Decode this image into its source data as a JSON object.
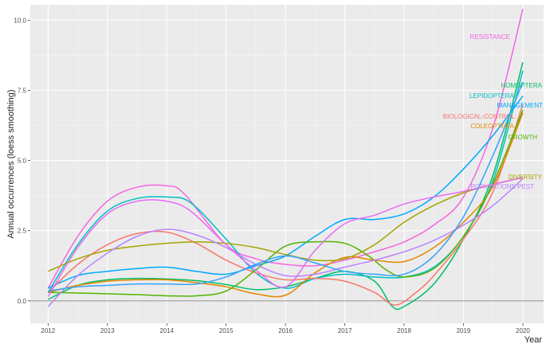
{
  "chart_data": {
    "type": "line",
    "title": "",
    "xlabel": "Year",
    "ylabel": "Annual occurrences (loess smoothing)",
    "xlim": [
      2011.7,
      2020.35
    ],
    "ylim": [
      -0.8,
      10.55
    ],
    "x_ticks": [
      2012,
      2013,
      2014,
      2015,
      2016,
      2017,
      2018,
      2019,
      2020
    ],
    "y_ticks": [
      0,
      2.5,
      5,
      7.5,
      10
    ],
    "y_tick_labels": [
      "0.0",
      "2.5",
      "5.0",
      "7.5",
      "10.0"
    ],
    "reference_line_y": 0,
    "grid": true,
    "legend": "direct labels at line ends",
    "series": [
      {
        "name": "RESISTANCE",
        "color": "#F564E3",
        "points": [
          [
            2012,
            0.45
          ],
          [
            2012.5,
            2.3
          ],
          [
            2013,
            3.55
          ],
          [
            2013.5,
            4.05
          ],
          [
            2014,
            4.1
          ],
          [
            2014.3,
            3.8
          ],
          [
            2015,
            2.0
          ],
          [
            2015.5,
            1.5
          ],
          [
            2016,
            1.3
          ],
          [
            2016.5,
            1.25
          ],
          [
            2017,
            1.45
          ],
          [
            2017.5,
            1.75
          ],
          [
            2018,
            2.1
          ],
          [
            2018.5,
            2.7
          ],
          [
            2019,
            3.7
          ],
          [
            2019.5,
            6.2
          ],
          [
            2020,
            10.4
          ]
        ]
      },
      {
        "name": "HOMOPTERA",
        "color": "#00BE67",
        "points": [
          [
            2012,
            0.05
          ],
          [
            2012.5,
            0.55
          ],
          [
            2013,
            0.75
          ],
          [
            2013.5,
            0.8
          ],
          [
            2014,
            0.78
          ],
          [
            2014.5,
            0.72
          ],
          [
            2015,
            0.58
          ],
          [
            2015.5,
            0.4
          ],
          [
            2016,
            0.5
          ],
          [
            2016.5,
            0.8
          ],
          [
            2017,
            1.05
          ],
          [
            2017.5,
            0.7
          ],
          [
            2017.8,
            -0.2
          ],
          [
            2018,
            -0.2
          ],
          [
            2018.5,
            0.6
          ],
          [
            2019,
            2.2
          ],
          [
            2019.5,
            4.5
          ],
          [
            2020,
            8.5
          ]
        ]
      },
      {
        "name": "LEPIDOPTERA",
        "color": "#00BFC4",
        "points": [
          [
            2012,
            0.3
          ],
          [
            2012.5,
            2.0
          ],
          [
            2013,
            3.2
          ],
          [
            2013.5,
            3.65
          ],
          [
            2014,
            3.7
          ],
          [
            2014.4,
            3.5
          ],
          [
            2015,
            2.2
          ],
          [
            2015.5,
            1.0
          ],
          [
            2016,
            0.45
          ],
          [
            2016.5,
            0.8
          ],
          [
            2017,
            0.95
          ],
          [
            2017.5,
            0.85
          ],
          [
            2018,
            0.85
          ],
          [
            2018.5,
            1.2
          ],
          [
            2019,
            2.3
          ],
          [
            2019.5,
            4.3
          ],
          [
            2020,
            8.2
          ]
        ]
      },
      {
        "name": "MANAGEMENT",
        "color": "#00A9FF",
        "points": [
          [
            2012,
            0.45
          ],
          [
            2012.5,
            0.9
          ],
          [
            2013,
            1.05
          ],
          [
            2013.5,
            1.15
          ],
          [
            2014,
            1.2
          ],
          [
            2014.5,
            1.05
          ],
          [
            2015,
            0.95
          ],
          [
            2015.5,
            1.25
          ],
          [
            2016,
            1.6
          ],
          [
            2016.5,
            2.3
          ],
          [
            2017,
            2.9
          ],
          [
            2017.5,
            2.9
          ],
          [
            2018,
            3.1
          ],
          [
            2018.5,
            3.7
          ],
          [
            2019,
            4.7
          ],
          [
            2019.5,
            5.9
          ],
          [
            2020,
            7.3
          ]
        ]
      },
      {
        "name": "BIOLOGICAL-CONTROL",
        "color": "#F8766D",
        "points": [
          [
            2012,
            0.3
          ],
          [
            2012.5,
            1.3
          ],
          [
            2013,
            2.0
          ],
          [
            2013.5,
            2.4
          ],
          [
            2014,
            2.45
          ],
          [
            2014.5,
            2.05
          ],
          [
            2015,
            1.45
          ],
          [
            2015.5,
            1.0
          ],
          [
            2016,
            0.75
          ],
          [
            2016.5,
            0.8
          ],
          [
            2017,
            0.7
          ],
          [
            2017.5,
            0.3
          ],
          [
            2017.85,
            -0.15
          ],
          [
            2018.2,
            0.3
          ],
          [
            2018.5,
            0.9
          ],
          [
            2019,
            2.2
          ],
          [
            2019.5,
            3.9
          ],
          [
            2020,
            7.0
          ]
        ]
      },
      {
        "name": "COLEOPTERA",
        "color": "#E58700",
        "points": [
          [
            2012,
            0.3
          ],
          [
            2012.5,
            0.55
          ],
          [
            2013,
            0.7
          ],
          [
            2013.5,
            0.75
          ],
          [
            2014,
            0.75
          ],
          [
            2014.5,
            0.65
          ],
          [
            2015,
            0.5
          ],
          [
            2015.5,
            0.25
          ],
          [
            2016,
            0.2
          ],
          [
            2016.5,
            1.0
          ],
          [
            2017,
            1.55
          ],
          [
            2017.5,
            1.45
          ],
          [
            2018,
            1.4
          ],
          [
            2018.5,
            1.9
          ],
          [
            2019,
            2.8
          ],
          [
            2019.5,
            4.1
          ],
          [
            2020,
            6.7
          ]
        ]
      },
      {
        "name": "GROWTH",
        "color": "#53B400",
        "points": [
          [
            2012,
            0.3
          ],
          [
            2012.5,
            0.28
          ],
          [
            2013,
            0.25
          ],
          [
            2013.5,
            0.22
          ],
          [
            2014,
            0.18
          ],
          [
            2014.5,
            0.18
          ],
          [
            2015,
            0.35
          ],
          [
            2015.5,
            1.1
          ],
          [
            2016,
            1.95
          ],
          [
            2016.5,
            2.1
          ],
          [
            2017,
            2.05
          ],
          [
            2017.4,
            1.6
          ],
          [
            2017.7,
            1.1
          ],
          [
            2018,
            0.85
          ],
          [
            2018.5,
            1.15
          ],
          [
            2019,
            2.3
          ],
          [
            2019.5,
            4.2
          ],
          [
            2020,
            6.8
          ]
        ]
      },
      {
        "name": "DIVERSITY",
        "color": "#A3A500",
        "points": [
          [
            2012,
            1.05
          ],
          [
            2012.5,
            1.5
          ],
          [
            2013,
            1.8
          ],
          [
            2013.5,
            1.95
          ],
          [
            2014,
            2.05
          ],
          [
            2014.5,
            2.1
          ],
          [
            2015,
            2.05
          ],
          [
            2015.5,
            1.9
          ],
          [
            2016,
            1.65
          ],
          [
            2016.5,
            1.45
          ],
          [
            2017,
            1.5
          ],
          [
            2017.5,
            2.0
          ],
          [
            2018,
            2.8
          ],
          [
            2018.5,
            3.4
          ],
          [
            2019,
            3.85
          ],
          [
            2019.5,
            4.15
          ],
          [
            2020,
            4.4
          ]
        ]
      },
      {
        "name": "POPULATIONS PEST",
        "color": "#B983FF",
        "points": [
          [
            2012,
            -0.2
          ],
          [
            2012.5,
            0.9
          ],
          [
            2013,
            1.7
          ],
          [
            2013.5,
            2.3
          ],
          [
            2014,
            2.55
          ],
          [
            2014.5,
            2.35
          ],
          [
            2015,
            1.9
          ],
          [
            2015.5,
            1.3
          ],
          [
            2016,
            0.9
          ],
          [
            2016.5,
            0.95
          ],
          [
            2017,
            1.2
          ],
          [
            2017.5,
            1.45
          ],
          [
            2018,
            1.75
          ],
          [
            2018.5,
            2.15
          ],
          [
            2019,
            2.7
          ],
          [
            2019.5,
            3.4
          ],
          [
            2020,
            4.35
          ]
        ]
      },
      {
        "name": "",
        "color": "#E76BF3",
        "points": [
          [
            2012,
            0.15
          ],
          [
            2012.5,
            1.9
          ],
          [
            2013,
            3.1
          ],
          [
            2013.5,
            3.55
          ],
          [
            2014,
            3.55
          ],
          [
            2014.4,
            3.2
          ],
          [
            2015,
            2.0
          ],
          [
            2015.5,
            1.1
          ],
          [
            2016,
            0.5
          ],
          [
            2016.5,
            1.8
          ],
          [
            2017,
            2.75
          ],
          [
            2017.5,
            3.05
          ],
          [
            2018,
            3.45
          ],
          [
            2018.5,
            3.7
          ],
          [
            2019,
            3.9
          ],
          [
            2019.5,
            4.15
          ],
          [
            2020,
            4.4
          ]
        ]
      },
      {
        "name": "",
        "color": "#35A2FF",
        "points": [
          [
            2012,
            0.35
          ],
          [
            2012.5,
            0.5
          ],
          [
            2013,
            0.55
          ],
          [
            2013.5,
            0.6
          ],
          [
            2014,
            0.6
          ],
          [
            2014.5,
            0.6
          ],
          [
            2015,
            0.85
          ],
          [
            2015.5,
            1.3
          ],
          [
            2016,
            1.6
          ],
          [
            2016.5,
            1.35
          ],
          [
            2017,
            1.05
          ],
          [
            2017.5,
            0.95
          ],
          [
            2018,
            0.95
          ],
          [
            2018.5,
            1.6
          ],
          [
            2019,
            3.0
          ],
          [
            2019.5,
            5.2
          ],
          [
            2020,
            7.8
          ]
        ]
      }
    ]
  }
}
